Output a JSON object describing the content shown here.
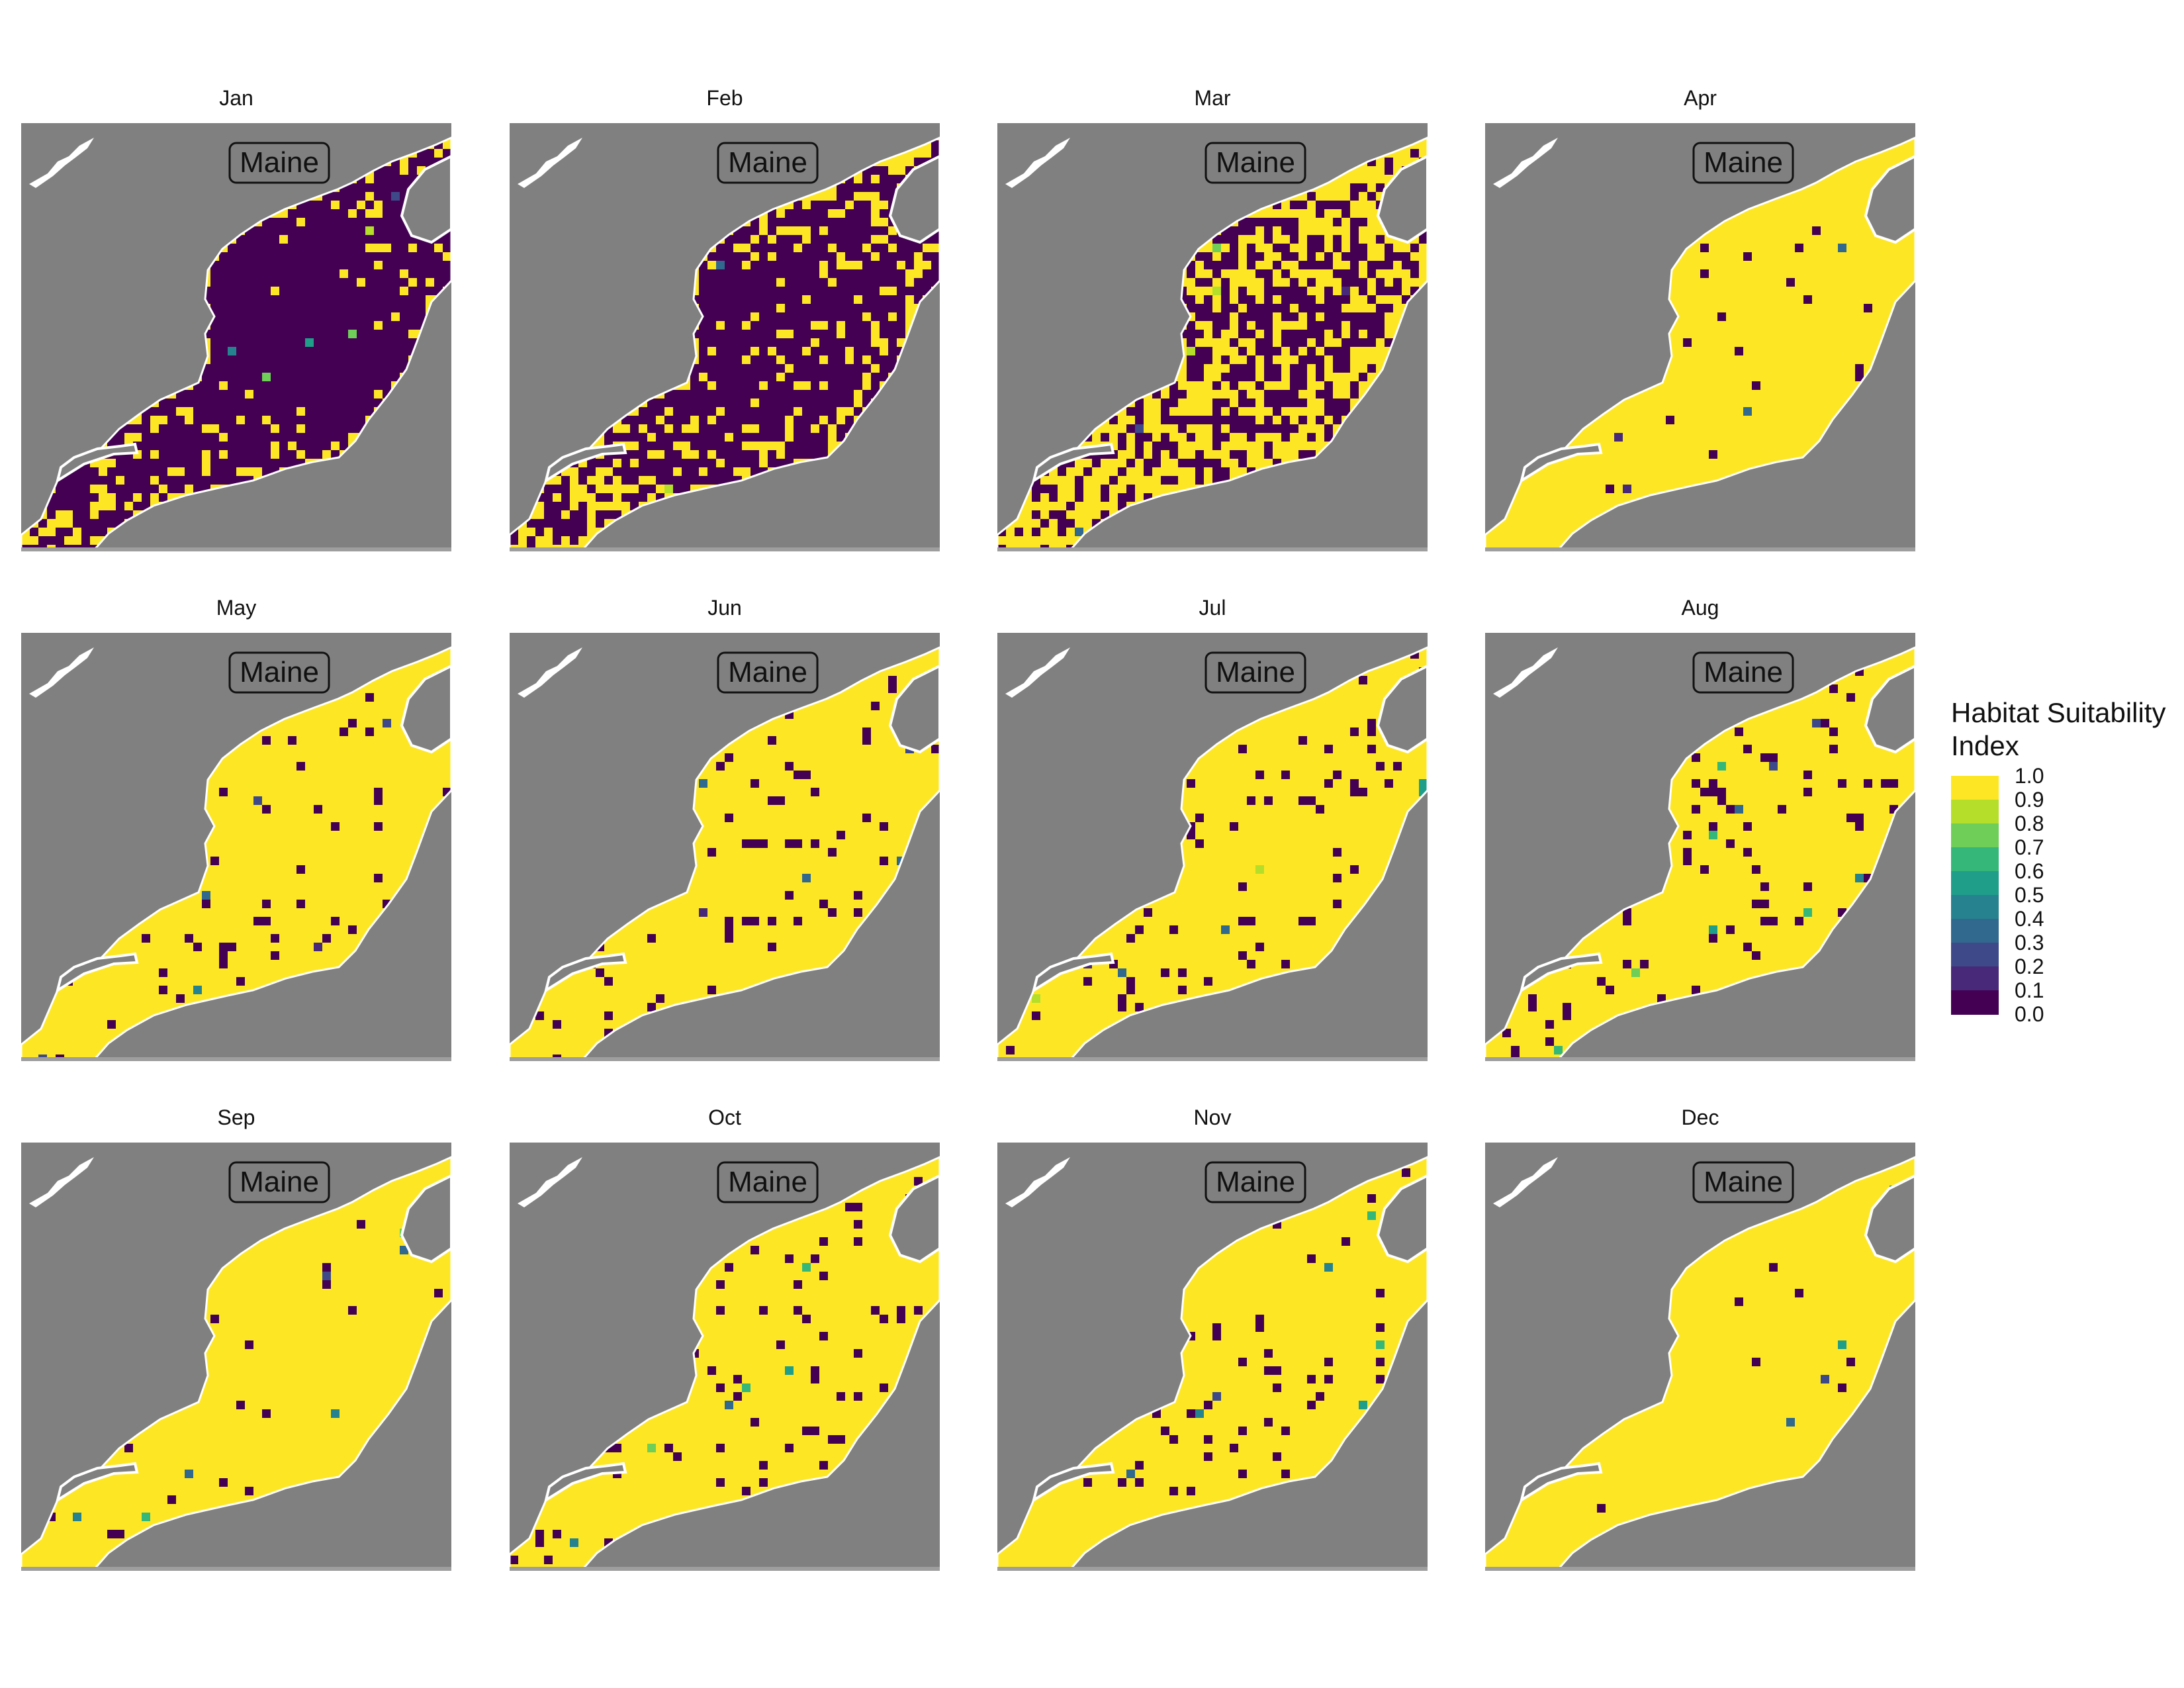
{
  "figure": {
    "panels": [
      {
        "title": "Jan",
        "label": "Maine",
        "level": 0.13
      },
      {
        "title": "Feb",
        "label": "Maine",
        "level": 0.27
      },
      {
        "title": "Mar",
        "label": "Maine",
        "level": 0.55
      },
      {
        "title": "Apr",
        "label": "Maine",
        "level": 0.98
      },
      {
        "title": "May",
        "label": "Maine",
        "level": 0.95
      },
      {
        "title": "Jun",
        "label": "Maine",
        "level": 0.95
      },
      {
        "title": "Jul",
        "label": "Maine",
        "level": 0.94
      },
      {
        "title": "Aug",
        "label": "Maine",
        "level": 0.94
      },
      {
        "title": "Sep",
        "label": "Maine",
        "level": 0.985
      },
      {
        "title": "Oct",
        "label": "Maine",
        "level": 0.93
      },
      {
        "title": "Nov",
        "label": "Maine",
        "level": 0.96
      },
      {
        "title": "Dec",
        "label": "Maine",
        "level": 0.995
      }
    ],
    "legend": {
      "title_line1": "Habitat Suitability",
      "title_line2": "Index",
      "labels": [
        "1.0",
        "0.9",
        "0.8",
        "0.7",
        "0.6",
        "0.5",
        "0.4",
        "0.3",
        "0.2",
        "0.1",
        "0.0"
      ],
      "colors": [
        "#fde725",
        "#b5de2b",
        "#6ece58",
        "#35b779",
        "#1f9e89",
        "#26828e",
        "#31688e",
        "#3e4989",
        "#482878",
        "#440154"
      ]
    },
    "colors": {
      "land": "#808080",
      "coast": "#ffffff",
      "high": "#fde725",
      "low": "#440154",
      "mid": [
        "#b5de2b",
        "#6ece58",
        "#35b779",
        "#1f9e89",
        "#26828e",
        "#31688e",
        "#3e4989",
        "#482878"
      ]
    }
  }
}
